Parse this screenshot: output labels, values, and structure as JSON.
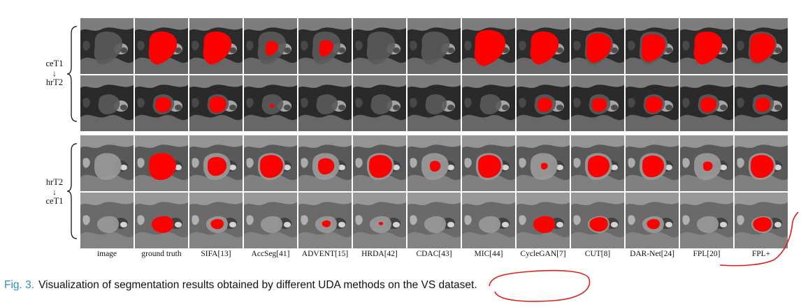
{
  "columns": [
    "image",
    "ground truth",
    "SIFA[13]",
    "AccSeg[41]",
    "ADVENT[15]",
    "HRDA[42]",
    "CDAC[43]",
    "MIC[44]",
    "CycleGAN[7]",
    "CUT[8]",
    "DAR-Net[24]",
    "FPL[20]",
    "FPL+"
  ],
  "groups": [
    {
      "source": "ceT1",
      "arrow": "↓",
      "target": "hrT2"
    },
    {
      "source": "hrT2",
      "arrow": "↓",
      "target": "ceT1"
    }
  ],
  "caption": {
    "figure_label": "Fig. 3.",
    "text": "Visualization of segmentation results obtained by different UDA methods on the VS dataset."
  },
  "colors": {
    "segmentation": "#ff0000",
    "caption_label": "#2a8fc8",
    "annotation_pen": "#e0201b"
  }
}
